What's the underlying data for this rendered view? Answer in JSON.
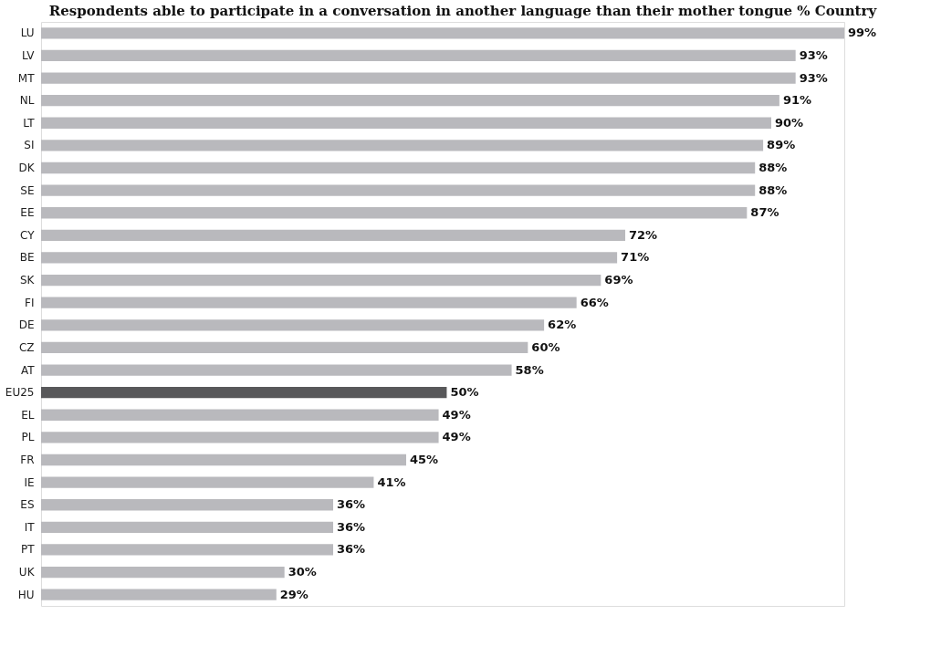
{
  "chart_data": {
    "type": "bar",
    "orientation": "horizontal",
    "title": "Respondents able to participate in a conversation in another language than their mother tongue % Country",
    "categories": [
      "LU",
      "LV",
      "MT",
      "NL",
      "LT",
      "SI",
      "DK",
      "SE",
      "EE",
      "CY",
      "BE",
      "SK",
      "FI",
      "DE",
      "CZ",
      "AT",
      "EU25",
      "EL",
      "PL",
      "FR",
      "IE",
      "ES",
      "IT",
      "PT",
      "UK",
      "HU"
    ],
    "values": [
      99,
      93,
      93,
      91,
      90,
      89,
      88,
      88,
      87,
      72,
      71,
      69,
      66,
      62,
      60,
      58,
      50,
      49,
      49,
      45,
      41,
      36,
      36,
      36,
      30,
      29
    ],
    "value_labels": [
      "99%",
      "93%",
      "93%",
      "91%",
      "90%",
      "89%",
      "88%",
      "88%",
      "87%",
      "72%",
      "71%",
      "69%",
      "66%",
      "62%",
      "60%",
      "58%",
      "50%",
      "49%",
      "49%",
      "45%",
      "41%",
      "36%",
      "36%",
      "36%",
      "30%",
      "29%"
    ],
    "colors": [
      "#b9b9bd",
      "#b9b9bd",
      "#b9b9bd",
      "#b9b9bd",
      "#b9b9bd",
      "#b9b9bd",
      "#b9b9bd",
      "#b9b9bd",
      "#b9b9bd",
      "#b9b9bd",
      "#b9b9bd",
      "#b9b9bd",
      "#b9b9bd",
      "#b9b9bd",
      "#b9b9bd",
      "#b9b9bd",
      "#58585a",
      "#b9b9bd",
      "#b9b9bd",
      "#b9b9bd",
      "#b9b9bd",
      "#b9b9bd",
      "#b9b9bd",
      "#b9b9bd",
      "#b9b9bd",
      "#b9b9bd"
    ],
    "tick_labels": "y",
    "grid": false
  }
}
